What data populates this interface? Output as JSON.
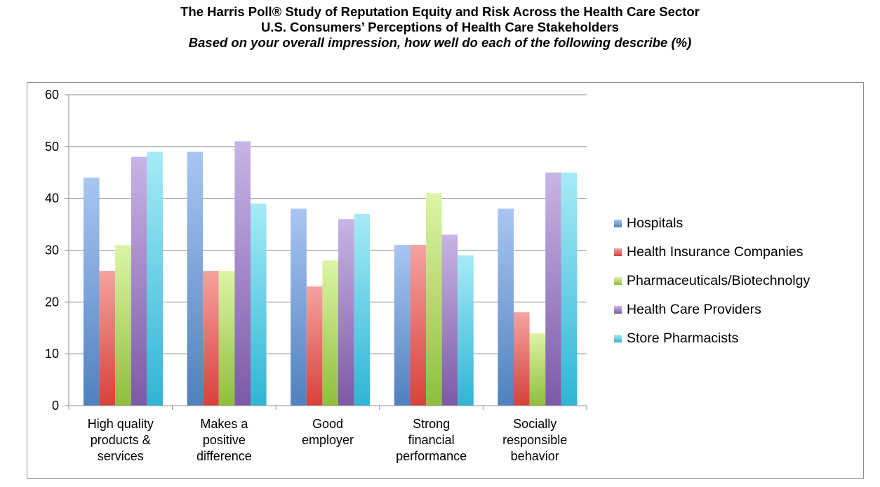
{
  "title_line1": "The Harris Poll® Study of Reputation Equity and Risk Across the Health Care Sector",
  "title_line2": "U.S. Consumers’ Perceptions of Health Care Stakeholders",
  "title_line3": "Based on your overall impression, how well do each of the following describe (%)",
  "chart_data": {
    "type": "bar",
    "categories": [
      [
        "High quality",
        "products &",
        "services"
      ],
      [
        "Makes a",
        "positive",
        "difference"
      ],
      [
        "Good",
        "employer"
      ],
      [
        "Strong",
        "financial",
        "performance"
      ],
      [
        "Socially",
        "responsible",
        "behavior"
      ]
    ],
    "series": [
      {
        "name": "Hospitals",
        "values": [
          44,
          49,
          38,
          31,
          38
        ],
        "color": "#4f81bd",
        "light": "#a9c6f2"
      },
      {
        "name": "Health Insurance Companies",
        "values": [
          26,
          26,
          23,
          31,
          18
        ],
        "color": "#d9403b",
        "light": "#f4a3a0"
      },
      {
        "name": "Pharmaceuticals/Biotechnolgy",
        "values": [
          31,
          26,
          28,
          41,
          14
        ],
        "color": "#8fbe3c",
        "light": "#dcf5a6"
      },
      {
        "name": "Health Care Providers",
        "values": [
          48,
          51,
          36,
          33,
          45
        ],
        "color": "#7b5aa6",
        "light": "#c8b4e6"
      },
      {
        "name": "Store Pharmacists",
        "values": [
          49,
          39,
          37,
          29,
          45
        ],
        "color": "#2fb5d4",
        "light": "#a6ebf7"
      }
    ],
    "ylim": [
      0,
      60
    ],
    "yticks": [
      0,
      10,
      20,
      30,
      40,
      50,
      60
    ],
    "gridlines": true,
    "legend_position": "right",
    "xlabel": "",
    "ylabel": ""
  }
}
